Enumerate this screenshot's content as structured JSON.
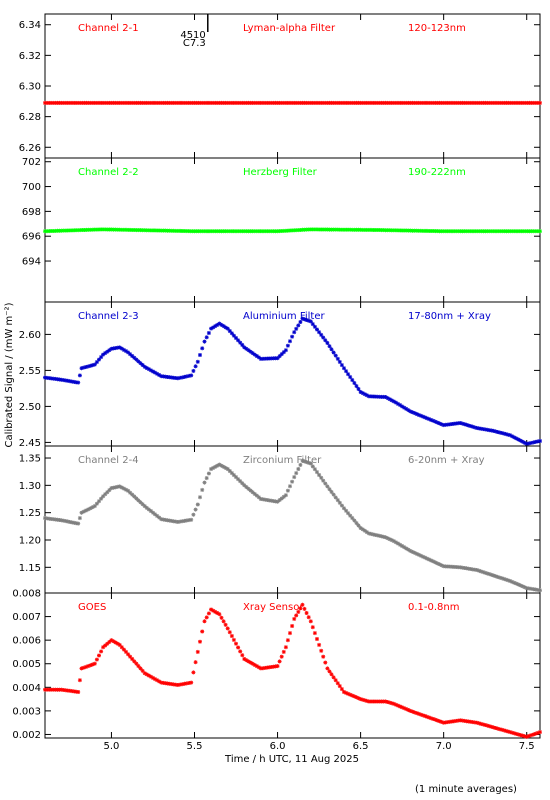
{
  "xlabel": "Time / h UTC, 11 Aug 2025",
  "ylabel": "Calibrated Signal / (mW m⁻²)",
  "footnote": "(1 minute averages)",
  "flare_marker": {
    "x": 5.58,
    "lines": [
      "4510",
      "C7.3"
    ]
  },
  "colors": {
    "red": "#ff0000",
    "green": "#00ff00",
    "blue": "#0000cc",
    "grey": "#7f7f7f",
    "goes": "#ff0000"
  },
  "chart_data": [
    {
      "type": "scatter",
      "labels": [
        "Channel 2-1",
        "Lyman-alpha Filter",
        "120-123nm"
      ],
      "color": "#ff0000",
      "xlim": [
        4.6,
        7.58
      ],
      "ylim": [
        6.253,
        6.347
      ],
      "x_ticks": [
        "5.0",
        "5.5",
        "6.0",
        "6.5",
        "7.0",
        "7.5"
      ],
      "y_ticks": [
        6.26,
        6.28,
        6.3,
        6.32,
        6.34
      ],
      "y_tick_labels": [
        "6.26",
        "6.28",
        "6.30",
        "6.32",
        "6.34"
      ],
      "x": [
        4.6,
        5.0,
        5.5,
        6.0,
        6.5,
        7.0,
        7.58
      ],
      "y": [
        6.289,
        6.289,
        6.289,
        6.289,
        6.289,
        6.289,
        6.289
      ]
    },
    {
      "type": "scatter",
      "labels": [
        "Channel 2-2",
        "Herzberg Filter",
        "190-222nm"
      ],
      "color": "#00ff00",
      "xlim": [
        4.6,
        7.58
      ],
      "ylim": [
        690.7,
        702.3
      ],
      "x_ticks": [
        "5.0",
        "5.5",
        "6.0",
        "6.5",
        "7.0",
        "7.5"
      ],
      "y_ticks": [
        694,
        696,
        698,
        700,
        702
      ],
      "y_tick_labels": [
        "694",
        "696",
        "698",
        "700",
        "702"
      ],
      "x": [
        4.6,
        4.95,
        5.5,
        6.0,
        6.2,
        6.6,
        7.0,
        7.58
      ],
      "y": [
        696.4,
        696.55,
        696.4,
        696.4,
        696.55,
        696.5,
        696.4,
        696.4
      ]
    },
    {
      "type": "scatter",
      "labels": [
        "Channel 2-3",
        "Aluminium Filter",
        "17-80nm + Xray"
      ],
      "color": "#0000cc",
      "xlim": [
        4.6,
        7.58
      ],
      "ylim": [
        2.445,
        2.645
      ],
      "x_ticks": [
        "5.0",
        "5.5",
        "6.0",
        "6.5",
        "7.0",
        "7.5"
      ],
      "y_ticks": [
        2.45,
        2.5,
        2.55,
        2.6
      ],
      "y_tick_labels": [
        "2.45",
        "2.50",
        "2.55",
        "2.60"
      ],
      "x": [
        4.6,
        4.7,
        4.8,
        4.82,
        4.9,
        4.95,
        5.0,
        5.05,
        5.1,
        5.2,
        5.3,
        5.4,
        5.48,
        5.52,
        5.56,
        5.6,
        5.65,
        5.7,
        5.8,
        5.9,
        6.0,
        6.05,
        6.1,
        6.15,
        6.2,
        6.3,
        6.4,
        6.5,
        6.55,
        6.65,
        6.7,
        6.8,
        7.0,
        7.1,
        7.2,
        7.3,
        7.4,
        7.5,
        7.58
      ],
      "y": [
        2.54,
        2.537,
        2.533,
        2.553,
        2.558,
        2.572,
        2.58,
        2.582,
        2.575,
        2.555,
        2.542,
        2.539,
        2.543,
        2.562,
        2.59,
        2.608,
        2.615,
        2.608,
        2.582,
        2.566,
        2.567,
        2.578,
        2.603,
        2.622,
        2.618,
        2.588,
        2.553,
        2.52,
        2.514,
        2.513,
        2.507,
        2.493,
        2.474,
        2.477,
        2.47,
        2.466,
        2.46,
        2.448,
        2.452
      ]
    },
    {
      "type": "scatter",
      "labels": [
        "Channel 2-4",
        "Zirconium Filter",
        "6-20nm + Xray"
      ],
      "color": "#7f7f7f",
      "xlim": [
        4.6,
        7.58
      ],
      "ylim": [
        1.103,
        1.372
      ],
      "x_ticks": [
        "5.0",
        "5.5",
        "6.0",
        "6.5",
        "7.0",
        "7.5"
      ],
      "y_ticks": [
        1.15,
        1.2,
        1.25,
        1.3,
        1.35
      ],
      "y_tick_labels": [
        "1.15",
        "1.20",
        "1.25",
        "1.30",
        "1.35"
      ],
      "x": [
        4.6,
        4.7,
        4.8,
        4.82,
        4.9,
        4.95,
        5.0,
        5.05,
        5.1,
        5.2,
        5.3,
        5.4,
        5.48,
        5.52,
        5.56,
        5.6,
        5.65,
        5.7,
        5.8,
        5.9,
        6.0,
        6.05,
        6.1,
        6.15,
        6.2,
        6.3,
        6.4,
        6.5,
        6.55,
        6.65,
        6.7,
        6.8,
        7.0,
        7.1,
        7.2,
        7.3,
        7.4,
        7.5,
        7.58
      ],
      "y": [
        1.24,
        1.236,
        1.23,
        1.25,
        1.262,
        1.28,
        1.295,
        1.298,
        1.29,
        1.262,
        1.238,
        1.233,
        1.237,
        1.265,
        1.305,
        1.33,
        1.338,
        1.33,
        1.3,
        1.275,
        1.27,
        1.282,
        1.315,
        1.345,
        1.34,
        1.298,
        1.258,
        1.222,
        1.212,
        1.205,
        1.198,
        1.18,
        1.152,
        1.15,
        1.145,
        1.135,
        1.125,
        1.112,
        1.108
      ]
    },
    {
      "type": "scatter",
      "labels": [
        "GOES",
        "Xray Sensor",
        "0.1-0.8nm"
      ],
      "color": "#ff0000",
      "xlim": [
        4.6,
        7.58
      ],
      "ylim": [
        0.00185,
        0.008
      ],
      "x_ticks": [
        "5.0",
        "5.5",
        "6.0",
        "6.5",
        "7.0",
        "7.5"
      ],
      "y_ticks": [
        0.002,
        0.003,
        0.004,
        0.005,
        0.006,
        0.007,
        0.008
      ],
      "y_tick_labels": [
        "0.002",
        "0.003",
        "0.004",
        "0.005",
        "0.006",
        "0.007",
        "0.008"
      ],
      "x": [
        4.6,
        4.7,
        4.8,
        4.82,
        4.9,
        4.95,
        5.0,
        5.05,
        5.1,
        5.2,
        5.3,
        5.4,
        5.48,
        5.52,
        5.56,
        5.6,
        5.65,
        5.7,
        5.8,
        5.9,
        6.0,
        6.05,
        6.1,
        6.15,
        6.2,
        6.3,
        6.4,
        6.5,
        6.55,
        6.65,
        6.7,
        6.8,
        7.0,
        7.1,
        7.2,
        7.3,
        7.4,
        7.5,
        7.58
      ],
      "y": [
        0.0039,
        0.0039,
        0.0038,
        0.0048,
        0.005,
        0.0057,
        0.006,
        0.0058,
        0.0054,
        0.0046,
        0.0042,
        0.0041,
        0.0042,
        0.0055,
        0.0068,
        0.0073,
        0.0071,
        0.0065,
        0.0052,
        0.0048,
        0.0049,
        0.0057,
        0.0069,
        0.0075,
        0.0068,
        0.0048,
        0.0038,
        0.0035,
        0.0034,
        0.0034,
        0.0033,
        0.003,
        0.0025,
        0.0026,
        0.0025,
        0.0023,
        0.0021,
        0.0019,
        0.0021
      ]
    }
  ]
}
